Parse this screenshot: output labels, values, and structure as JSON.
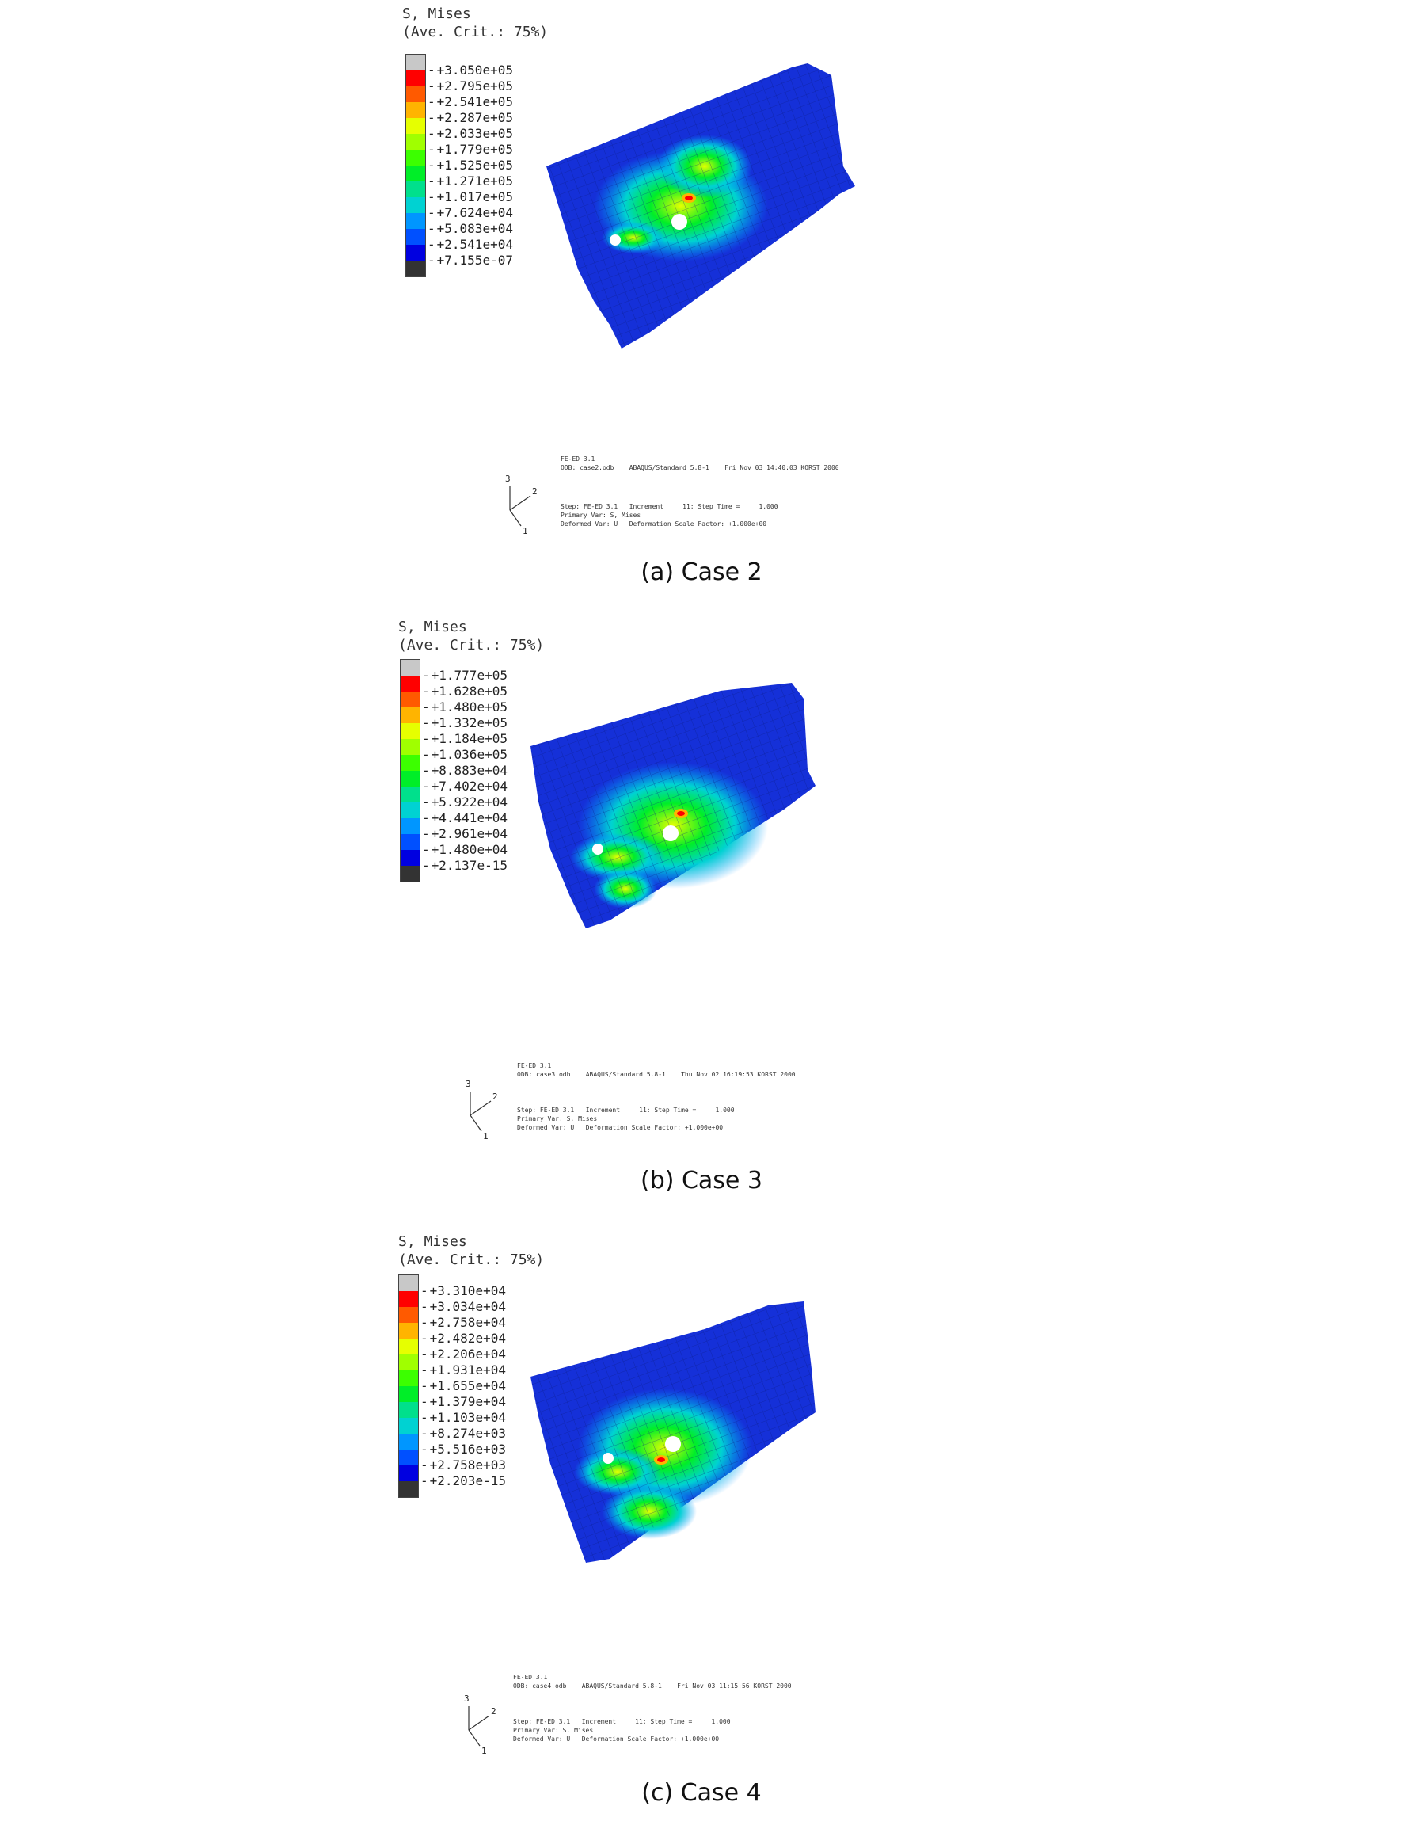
{
  "panels": [
    {
      "id": "a",
      "legend_title": "S, Mises\n(Ave. Crit.: 75%)",
      "legend_values": [
        "+3.050e+05",
        "+2.795e+05",
        "+2.541e+05",
        "+2.287e+05",
        "+2.033e+05",
        "+1.779e+05",
        "+1.525e+05",
        "+1.271e+05",
        "+1.017e+05",
        "+7.624e+04",
        "+5.083e+04",
        "+2.541e+04",
        "+7.155e-07"
      ],
      "info_header": "FE-ED 3.1\nODB: case2.odb    ABAQUS/Standard 5.8-1    Fri Nov 03 14:40:03 KORST 2000",
      "info_step": "Step: FE-ED 3.1   Increment     11: Step Time =     1.000\nPrimary Var: S, Mises\nDeformed Var: U   Deformation Scale Factor: +1.000e+00",
      "triad": {
        "axis_3": "3",
        "axis_2": "2",
        "axis_1": "1"
      },
      "caption": "(a)  Case  2"
    },
    {
      "id": "b",
      "legend_title": "S, Mises\n(Ave. Crit.: 75%)",
      "legend_values": [
        "+1.777e+05",
        "+1.628e+05",
        "+1.480e+05",
        "+1.332e+05",
        "+1.184e+05",
        "+1.036e+05",
        "+8.883e+04",
        "+7.402e+04",
        "+5.922e+04",
        "+4.441e+04",
        "+2.961e+04",
        "+1.480e+04",
        "+2.137e-15"
      ],
      "info_header": "FE-ED 3.1\nODB: case3.odb    ABAQUS/Standard 5.8-1    Thu Nov 02 16:19:53 KORST 2000",
      "info_step": "Step: FE-ED 3.1   Increment     11: Step Time =     1.000\nPrimary Var: S, Mises\nDeformed Var: U   Deformation Scale Factor: +1.000e+00",
      "triad": {
        "axis_3": "3",
        "axis_2": "2",
        "axis_1": "1"
      },
      "caption": "(b)  Case  3"
    },
    {
      "id": "c",
      "legend_title": "S, Mises\n(Ave. Crit.: 75%)",
      "legend_values": [
        "+3.310e+04",
        "+3.034e+04",
        "+2.758e+04",
        "+2.482e+04",
        "+2.206e+04",
        "+1.931e+04",
        "+1.655e+04",
        "+1.379e+04",
        "+1.103e+04",
        "+8.274e+03",
        "+5.516e+03",
        "+2.758e+03",
        "+2.203e-15"
      ],
      "info_header": "FE-ED 3.1\nODB: case4.odb    ABAQUS/Standard 5.8-1    Fri Nov 03 11:15:56 KORST 2000",
      "info_step": "Step: FE-ED 3.1   Increment     11: Step Time =     1.000\nPrimary Var: S, Mises\nDeformed Var: U   Deformation Scale Factor: +1.000e+00",
      "triad": {
        "axis_3": "3",
        "axis_2": "2",
        "axis_1": "1"
      },
      "caption": "(c)  Case  4"
    }
  ],
  "colors": {
    "legend_scale": [
      "#c8c8c8",
      "#ff0000",
      "#ff5a00",
      "#ffb400",
      "#e6ff00",
      "#a0ff00",
      "#3cff00",
      "#00ee28",
      "#00e08c",
      "#00d2d2",
      "#0096ff",
      "#0050ff",
      "#0000e0",
      "#333333"
    ],
    "model_blue": "#1530d8",
    "model_grid": "#0a1a80",
    "hole": "#ffffff"
  }
}
